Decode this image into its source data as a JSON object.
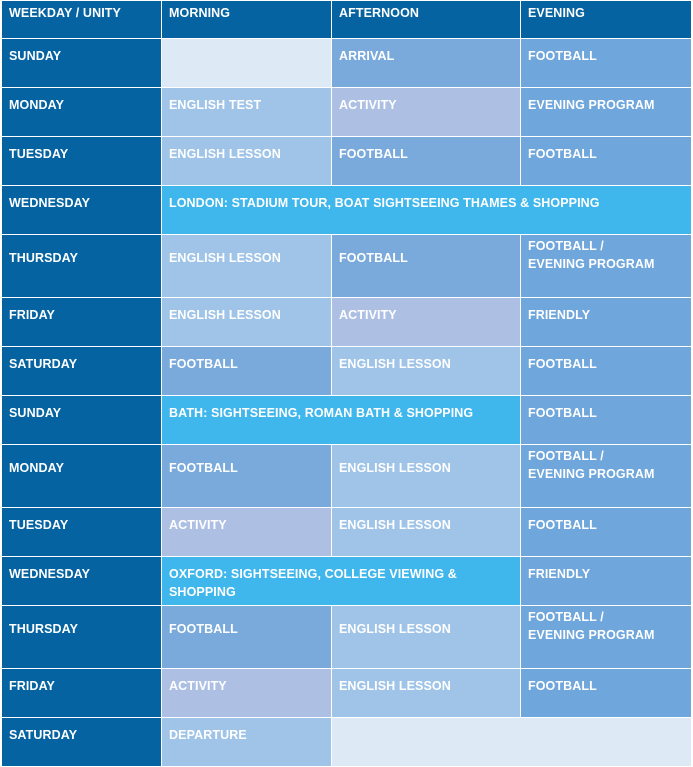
{
  "headers": [
    "WEEKDAY / UNITY",
    "MORNING",
    "AFTERNOON",
    "EVENING"
  ],
  "rows": [
    {
      "day": "SUNDAY",
      "morning": "",
      "afternoon": "ARRIVAL",
      "evening": "FOOTBALL"
    },
    {
      "day": "MONDAY",
      "morning": "ENGLISH TEST",
      "afternoon": "ACTIVITY",
      "evening": "EVENING PROGRAM"
    },
    {
      "day": "TUESDAY",
      "morning": "ENGLISH LESSON",
      "afternoon": "FOOTBALL",
      "evening": "FOOTBALL"
    },
    {
      "day": "WEDNESDAY",
      "excursion": "LONDON: STADIUM TOUR, BOAT SIGHTSEEING THAMES & SHOPPING"
    },
    {
      "day": "THURSDAY",
      "morning": "ENGLISH LESSON",
      "afternoon": "FOOTBALL",
      "evening_line1": "FOOTBALL /",
      "evening_line2": "EVENING PROGRAM"
    },
    {
      "day": "FRIDAY",
      "morning": "ENGLISH LESSON",
      "afternoon": "ACTIVITY",
      "evening": "FRIENDLY"
    },
    {
      "day": "SATURDAY",
      "morning": "FOOTBALL",
      "afternoon": "ENGLISH LESSON",
      "evening": "FOOTBALL"
    },
    {
      "day": "SUNDAY",
      "excursion": "BATH: SIGHTSEEING, ROMAN BATH & SHOPPING",
      "evening": "FOOTBALL"
    },
    {
      "day": "MONDAY",
      "morning": "FOOTBALL",
      "afternoon": "ENGLISH LESSON",
      "evening_line1": "FOOTBALL /",
      "evening_line2": "EVENING PROGRAM"
    },
    {
      "day": "TUESDAY",
      "morning": "ACTIVITY",
      "afternoon": "ENGLISH LESSON",
      "evening": "FOOTBALL"
    },
    {
      "day": "WEDNESDAY",
      "excursion": "OXFORD: SIGHTSEEING, COLLEGE VIEWING & SHOPPING",
      "evening": "FRIENDLY"
    },
    {
      "day": "THURSDAY",
      "morning": "FOOTBALL",
      "afternoon": "ENGLISH LESSON",
      "evening_line1": "FOOTBALL /",
      "evening_line2": "EVENING PROGRAM"
    },
    {
      "day": "FRIDAY",
      "morning": "ACTIVITY",
      "afternoon": "ENGLISH LESSON",
      "evening": "FOOTBALL"
    },
    {
      "day": "SATURDAY",
      "morning": "DEPARTURE",
      "afternoon": "",
      "evening": ""
    }
  ],
  "colors": {
    "day_column": "#0563a2",
    "header": "#0563a2",
    "light_blue": "#9fc4e7",
    "mid_blue": "#7aaadc",
    "lavender": "#adc0e4",
    "excursion_cyan": "#3fb6ec",
    "empty": "#dde9f5",
    "text": "#ffffff"
  }
}
